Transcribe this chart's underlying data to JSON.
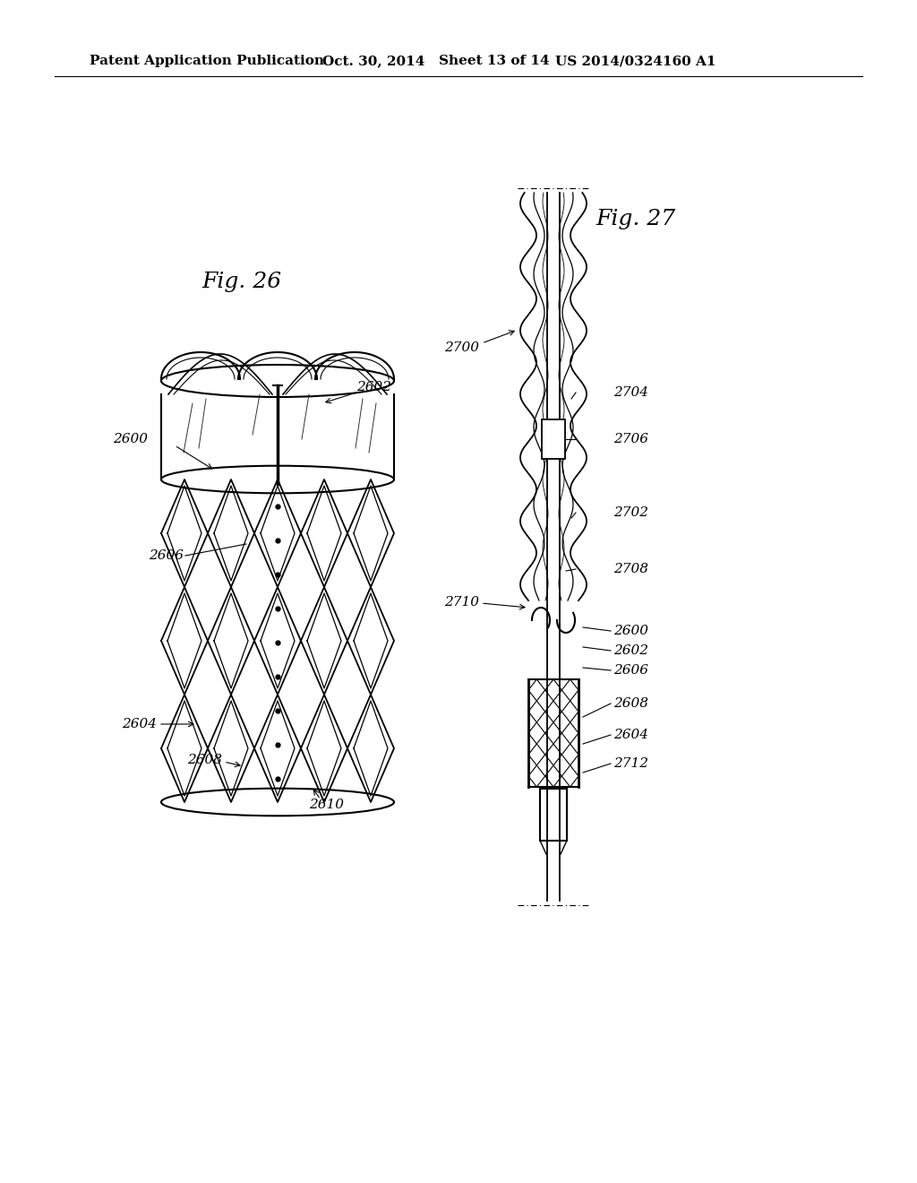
{
  "background_color": "#ffffff",
  "header_text": "Patent Application Publication",
  "header_date": "Oct. 30, 2014",
  "header_sheet": "Sheet 13 of 14",
  "header_patent": "US 2014/0324160 A1",
  "fig26_label": "Fig. 26",
  "fig27_label": "Fig. 27"
}
